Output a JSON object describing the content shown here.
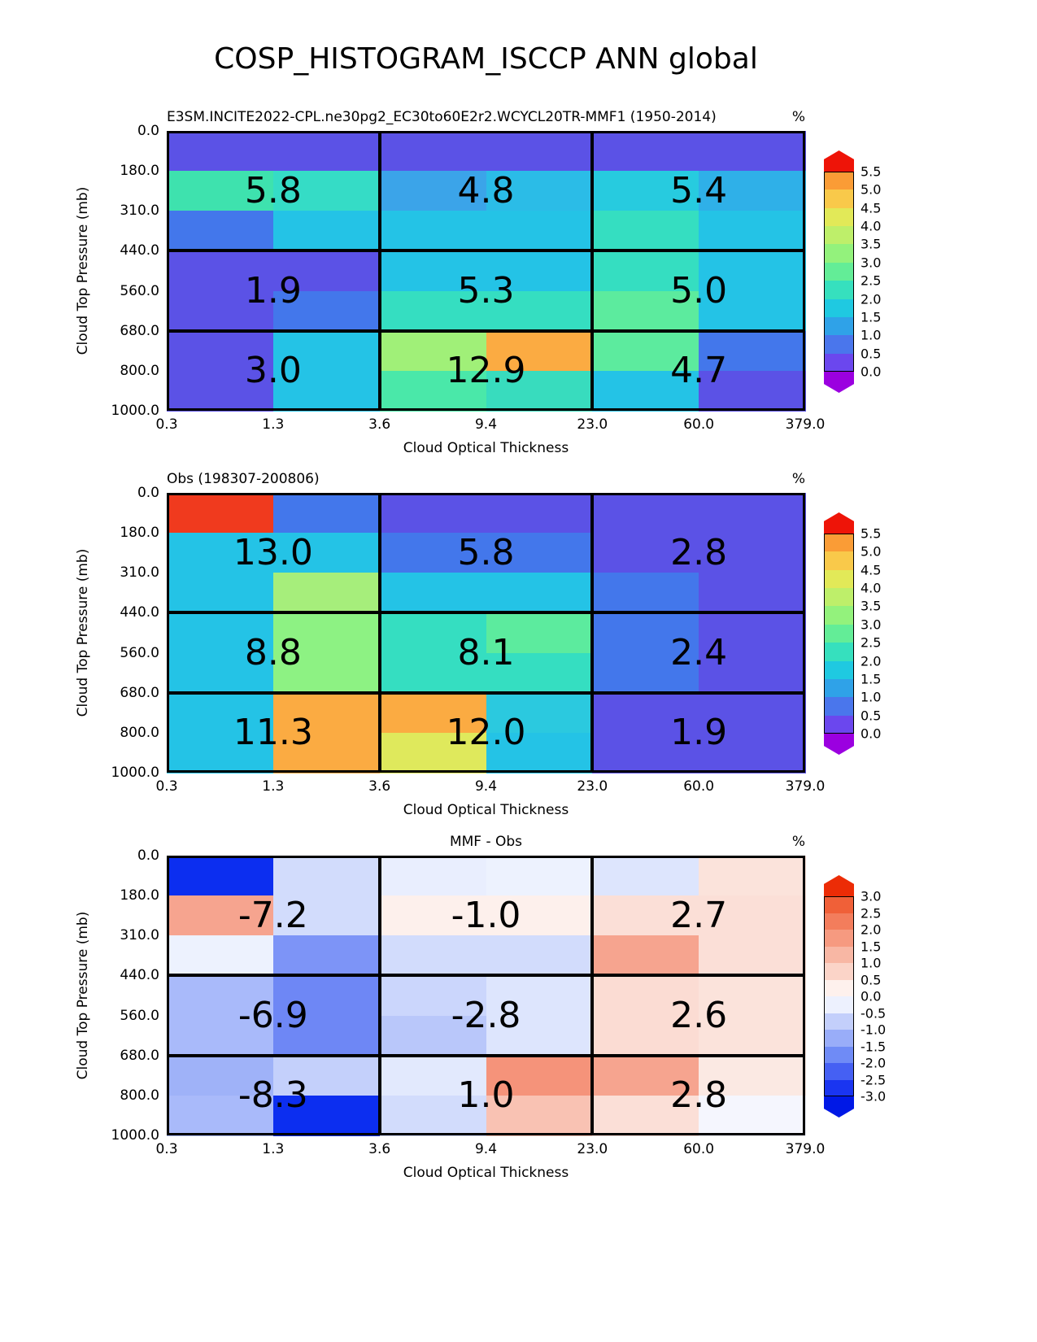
{
  "page": {
    "title": "COSP_HISTOGRAM_ISCCP ANN global",
    "background_color": "#ffffff"
  },
  "axes": {
    "x_label": "Cloud Optical Thickness",
    "y_label": "Cloud Top Pressure (mb)",
    "x_ticks": [
      "0.3",
      "1.3",
      "3.6",
      "9.4",
      "23.0",
      "60.0",
      "379.0"
    ],
    "y_ticks": [
      "0.0",
      "180.0",
      "310.0",
      "440.0",
      "560.0",
      "680.0",
      "800.0",
      "1000.0"
    ]
  },
  "chart_data": [
    {
      "type": "heatmap",
      "title": "E3SM.INCITE2022-CPL.ne30pg2_EC30to60E2r2.WCYCL20TR-MMF1 (1950-2014)",
      "title_align": "left",
      "unit": "%",
      "x_bin_edges": [
        0.3,
        1.3,
        3.6,
        9.4,
        23.0,
        60.0,
        379.0
      ],
      "y_bin_edges": [
        0.0,
        180.0,
        310.0,
        440.0,
        560.0,
        680.0,
        800.0,
        1000.0
      ],
      "region_values": [
        [
          "5.8",
          "4.8",
          "5.4"
        ],
        [
          "1.9",
          "5.3",
          "5.0"
        ],
        [
          "3.0",
          "12.9",
          "4.7"
        ]
      ],
      "cell_colors": [
        [
          "#5B52E6",
          "#5B52E6",
          "#5B52E6",
          "#5B52E6",
          "#5B52E6",
          "#5B52E6"
        ],
        [
          "#3EE2AE",
          "#35DCC6",
          "#3BA4E9",
          "#2BBCE7",
          "#27CBDF",
          "#2FB0E8"
        ],
        [
          "#4377EB",
          "#24C3E6",
          "#24C3E6",
          "#24C3E6",
          "#35DEC1",
          "#24C3E6"
        ],
        [
          "#5B52E6",
          "#5B52E6",
          "#24C3E6",
          "#24C3E6",
          "#35DEC1",
          "#24C3E6"
        ],
        [
          "#5B52E6",
          "#4377EB",
          "#35DEC1",
          "#35DEC1",
          "#5CEB9E",
          "#24C3E6"
        ],
        [
          "#5B52E6",
          "#24C3E6",
          "#A0F078",
          "#FBAB42",
          "#5CEB9E",
          "#4377EB"
        ],
        [
          "#5B52E6",
          "#24C3E6",
          "#4AE8A9",
          "#38DCBE",
          "#24C3E6",
          "#5B52E6"
        ]
      ],
      "colorbar": {
        "ticks_top_to_bottom": [
          "5.5",
          "5.0",
          "4.5",
          "4.0",
          "3.5",
          "3.0",
          "2.5",
          "2.0",
          "1.5",
          "1.0",
          "0.5",
          "0.0"
        ],
        "bands_bottom_to_top": [
          "#6B47EE",
          "#4A76EC",
          "#2FA2E8",
          "#1FC9E1",
          "#36E0BE",
          "#63ED97",
          "#93F27C",
          "#BEEF6A",
          "#E2E958",
          "#F9C94A",
          "#FA9C36"
        ],
        "over_color": "#EE1408",
        "under_color": "#9B00E0"
      }
    },
    {
      "type": "heatmap",
      "title": "Obs (198307-200806)",
      "title_align": "left",
      "unit": "%",
      "x_bin_edges": [
        0.3,
        1.3,
        3.6,
        9.4,
        23.0,
        60.0,
        379.0
      ],
      "y_bin_edges": [
        0.0,
        180.0,
        310.0,
        440.0,
        560.0,
        680.0,
        800.0,
        1000.0
      ],
      "region_values": [
        [
          "13.0",
          "5.8",
          "2.8"
        ],
        [
          "8.8",
          "8.1",
          "2.4"
        ],
        [
          "11.3",
          "12.0",
          "1.9"
        ]
      ],
      "cell_colors": [
        [
          "#F03A1E",
          "#4377EB",
          "#5B52E6",
          "#5B52E6",
          "#5B52E6",
          "#5B52E6"
        ],
        [
          "#24C3E6",
          "#24C3E6",
          "#4377EB",
          "#4377EB",
          "#5B52E6",
          "#5B52E6"
        ],
        [
          "#24C3E6",
          "#A6EE7B",
          "#24C3E6",
          "#24C3E6",
          "#4377EB",
          "#5B52E6"
        ],
        [
          "#24C3E6",
          "#8DF283",
          "#35DEC1",
          "#5CEB9E",
          "#4377EB",
          "#5B52E6"
        ],
        [
          "#24C3E6",
          "#8DF283",
          "#35DEC1",
          "#35DEC1",
          "#4377EB",
          "#5B52E6"
        ],
        [
          "#24C3E6",
          "#FBAB42",
          "#FBAB42",
          "#2BC9DF",
          "#5B52E6",
          "#5B52E6"
        ],
        [
          "#24C3E6",
          "#FBAB42",
          "#DFE95C",
          "#24C3E6",
          "#5B52E6",
          "#5B52E6"
        ]
      ],
      "colorbar": {
        "ticks_top_to_bottom": [
          "5.5",
          "5.0",
          "4.5",
          "4.0",
          "3.5",
          "3.0",
          "2.5",
          "2.0",
          "1.5",
          "1.0",
          "0.5",
          "0.0"
        ],
        "bands_bottom_to_top": [
          "#6B47EE",
          "#4A76EC",
          "#2FA2E8",
          "#1FC9E1",
          "#36E0BE",
          "#63ED97",
          "#93F27C",
          "#BEEF6A",
          "#E2E958",
          "#F9C94A",
          "#FA9C36"
        ],
        "over_color": "#EE1408",
        "under_color": "#9B00E0"
      }
    },
    {
      "type": "heatmap",
      "title": "MMF - Obs",
      "title_align": "center",
      "unit": "%",
      "x_bin_edges": [
        0.3,
        1.3,
        3.6,
        9.4,
        23.0,
        60.0,
        379.0
      ],
      "y_bin_edges": [
        0.0,
        180.0,
        310.0,
        440.0,
        560.0,
        680.0,
        800.0,
        1000.0
      ],
      "region_values": [
        [
          "-7.2",
          "-1.0",
          "2.7"
        ],
        [
          "-6.9",
          "-2.8",
          "2.6"
        ],
        [
          "-8.3",
          "1.0",
          "2.8"
        ]
      ],
      "cell_colors": [
        [
          "#0C2EF0",
          "#D2DCFC",
          "#E9EEFE",
          "#EDF2FE",
          "#DDE5FD",
          "#FBE3DB"
        ],
        [
          "#F6A48F",
          "#D2DCFC",
          "#FDF0EC",
          "#FDF0EC",
          "#FBDFD7",
          "#FBDFD7"
        ],
        [
          "#EDF2FE",
          "#7D94F7",
          "#D2DCFC",
          "#D2DCFC",
          "#F6A48F",
          "#FBDFD7"
        ],
        [
          "#A9BAFA",
          "#6E87F5",
          "#CBD6FC",
          "#DDE5FD",
          "#FBDCD3",
          "#FBE3DB"
        ],
        [
          "#A9BAFA",
          "#6E87F5",
          "#B9C7FA",
          "#DDE5FD",
          "#FBDCD3",
          "#FBE3DB"
        ],
        [
          "#9FB2F8",
          "#C4D0FB",
          "#E2E9FD",
          "#F5937A",
          "#F6A48F",
          "#FBE9E3"
        ],
        [
          "#A9BAFA",
          "#0C2EF0",
          "#D2DCFC",
          "#F9C2B3",
          "#FBDFD7",
          "#F5F6FE"
        ]
      ],
      "colorbar": {
        "ticks_top_to_bottom": [
          "3.0",
          "2.5",
          "2.0",
          "1.5",
          "1.0",
          "0.5",
          "0.0",
          "-0.5",
          "-1.0",
          "-1.5",
          "-2.0",
          "-2.5",
          "-3.0"
        ],
        "bands_bottom_to_top": [
          "#1A35F1",
          "#4560F3",
          "#6F8BF6",
          "#99ADF9",
          "#C3CFFB",
          "#EDF1FE",
          "#FEF1ED",
          "#FBD4C8",
          "#F8B7A4",
          "#F69A80",
          "#F37D5C",
          "#F06038"
        ],
        "over_color": "#EC2C06",
        "under_color": "#0018E6"
      }
    }
  ]
}
